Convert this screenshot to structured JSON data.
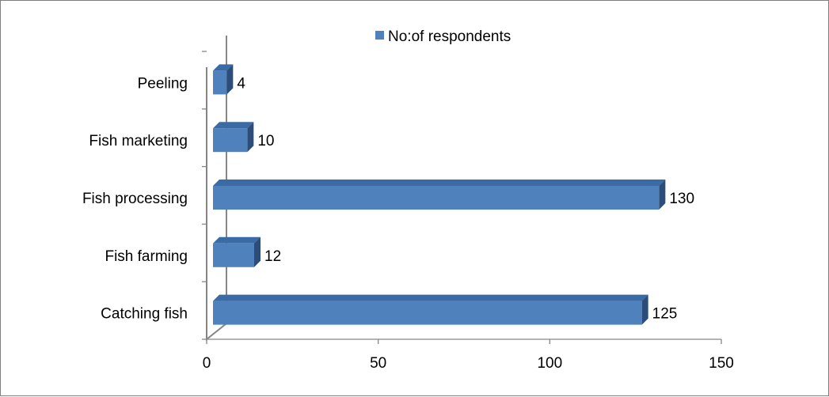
{
  "chart_data": {
    "type": "bar",
    "orientation": "horizontal",
    "style": "3d",
    "categories": [
      "Catching fish",
      "Fish farming",
      "Fish processing",
      "Fish marketing",
      "Peeling"
    ],
    "series": [
      {
        "name": "No:of respondents",
        "values": [
          125,
          12,
          130,
          10,
          4
        ],
        "color": "#4f81bd"
      }
    ],
    "value_labels": [
      "125",
      "12",
      "130",
      "10",
      "4"
    ],
    "xlim": [
      0,
      150
    ],
    "x_ticks": [
      0,
      50,
      100,
      150
    ],
    "x_tick_labels": [
      "0",
      "50",
      "100",
      "150"
    ],
    "legend": {
      "position": "top",
      "label": "No:of respondents"
    },
    "grid": false,
    "colors": {
      "bar_front": "#4f81bd",
      "bar_top": "#3a6ba5",
      "bar_side": "#2c4d7a",
      "axis": "#868686"
    }
  }
}
